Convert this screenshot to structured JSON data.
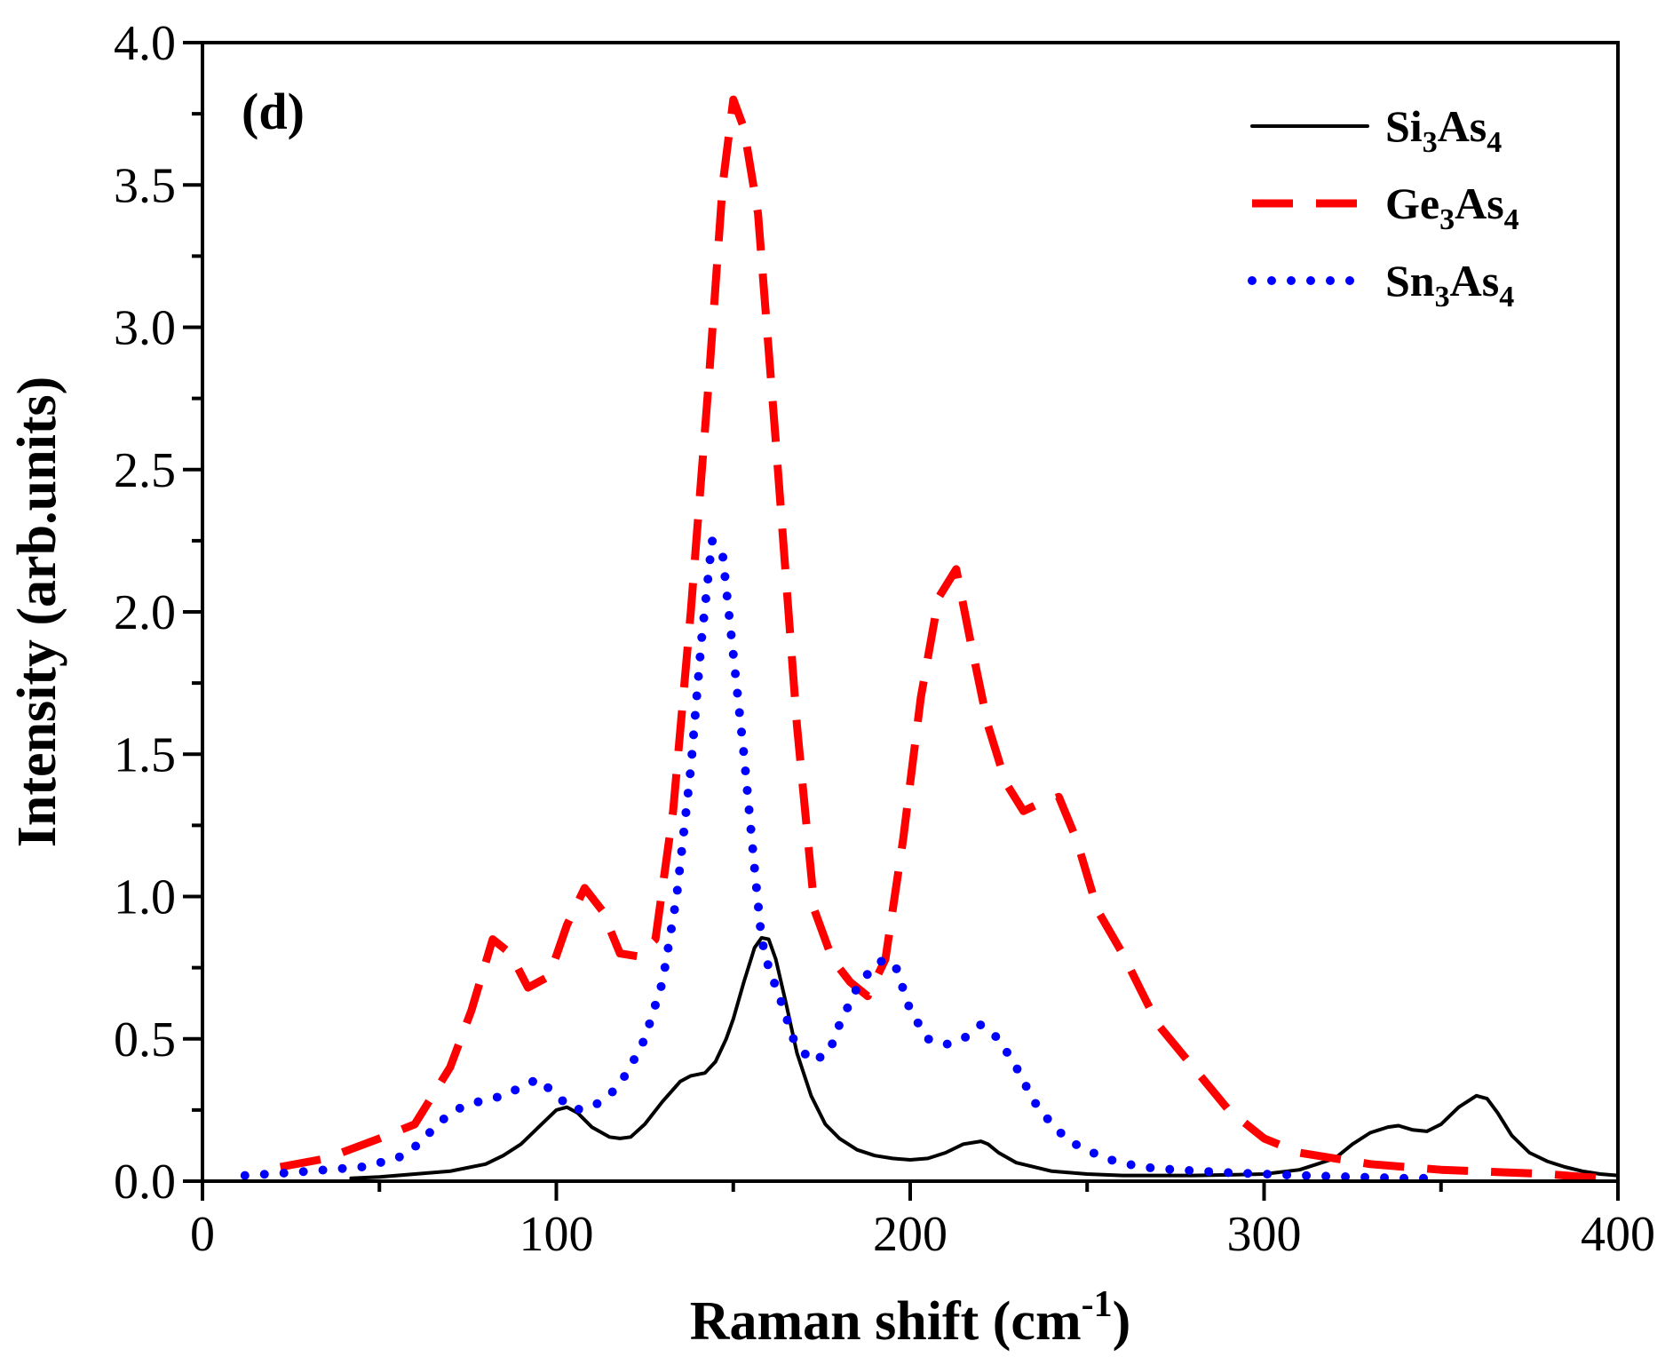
{
  "chart_data": {
    "type": "line",
    "panel_label": "(d)",
    "xlabel": "Raman shift (cm",
    "xlabel_superscript": "-1",
    "xlabel_suffix": ")",
    "ylabel": "Intensity (arb.units)",
    "xlim": [
      0,
      400
    ],
    "ylim": [
      0,
      4.0
    ],
    "xticks": [
      0,
      100,
      200,
      300,
      400
    ],
    "xtick_labels": [
      "0",
      "100",
      "200",
      "300",
      "400"
    ],
    "yticks": [
      0,
      0.5,
      1.0,
      1.5,
      2.0,
      2.5,
      3.0,
      3.5,
      4.0
    ],
    "ytick_labels": [
      "0.0",
      "0.5",
      "1.0",
      "1.5",
      "2.0",
      "2.5",
      "3.0",
      "3.5",
      "4.0"
    ],
    "grid": false,
    "legend_position": "top-right",
    "series": [
      {
        "name": "Si3As4",
        "label_parts": [
          "Si",
          "3",
          "As",
          "4"
        ],
        "color": "#000000",
        "style": "solid",
        "x": [
          42,
          50,
          60,
          70,
          80,
          85,
          90,
          95,
          100,
          103,
          106,
          110,
          115,
          118,
          121,
          125,
          130,
          135,
          138,
          142,
          145,
          148,
          150,
          153,
          156,
          158,
          160,
          162,
          165,
          168,
          172,
          176,
          180,
          185,
          190,
          195,
          200,
          205,
          210,
          215,
          220,
          222,
          225,
          230,
          240,
          250,
          260,
          270,
          280,
          290,
          300,
          310,
          320,
          325,
          330,
          335,
          338,
          342,
          346,
          350,
          355,
          360,
          363,
          366,
          370,
          375,
          380,
          385,
          390,
          395,
          400
        ],
        "values": [
          0.01,
          0.015,
          0.025,
          0.035,
          0.06,
          0.09,
          0.13,
          0.19,
          0.25,
          0.26,
          0.24,
          0.19,
          0.155,
          0.15,
          0.155,
          0.2,
          0.28,
          0.35,
          0.37,
          0.38,
          0.42,
          0.5,
          0.57,
          0.7,
          0.82,
          0.855,
          0.85,
          0.78,
          0.62,
          0.45,
          0.3,
          0.2,
          0.15,
          0.11,
          0.09,
          0.08,
          0.075,
          0.08,
          0.1,
          0.13,
          0.14,
          0.13,
          0.1,
          0.065,
          0.035,
          0.025,
          0.02,
          0.02,
          0.02,
          0.022,
          0.025,
          0.04,
          0.08,
          0.13,
          0.17,
          0.19,
          0.195,
          0.18,
          0.175,
          0.2,
          0.26,
          0.3,
          0.29,
          0.24,
          0.16,
          0.1,
          0.07,
          0.05,
          0.035,
          0.025,
          0.02
        ]
      },
      {
        "name": "Ge3As4",
        "label_parts": [
          "Ge",
          "3",
          "As",
          "4"
        ],
        "color": "#ff0000",
        "style": "dashed",
        "x": [
          22,
          35,
          50,
          60,
          70,
          76,
          82,
          87,
          92,
          98,
          103,
          108,
          113,
          118,
          123,
          128,
          133,
          138,
          143,
          147,
          150,
          153,
          157,
          162,
          168,
          173,
          178,
          183,
          188,
          193,
          198,
          203,
          208,
          213,
          217,
          222,
          227,
          232,
          237,
          242,
          247,
          253,
          260,
          270,
          280,
          290,
          300,
          310,
          320,
          330,
          340,
          350,
          360,
          370,
          380,
          385,
          390,
          398
        ],
        "values": [
          0.05,
          0.08,
          0.15,
          0.2,
          0.4,
          0.6,
          0.85,
          0.8,
          0.68,
          0.72,
          0.9,
          1.03,
          0.95,
          0.8,
          0.79,
          0.85,
          1.3,
          2.0,
          2.8,
          3.5,
          3.8,
          3.7,
          3.4,
          2.6,
          1.6,
          0.95,
          0.78,
          0.7,
          0.65,
          0.78,
          1.2,
          1.7,
          2.05,
          2.15,
          1.9,
          1.6,
          1.4,
          1.3,
          1.33,
          1.35,
          1.2,
          0.95,
          0.8,
          0.55,
          0.4,
          0.25,
          0.15,
          0.1,
          0.08,
          0.06,
          0.05,
          0.04,
          0.035,
          0.03,
          0.025,
          0.02,
          0.015,
          0.01
        ]
      },
      {
        "name": "Sn3As4",
        "label_parts": [
          "Sn",
          "3",
          "As",
          "4"
        ],
        "color": "#0000ff",
        "style": "dotted",
        "x": [
          12,
          25,
          35,
          45,
          55,
          60,
          65,
          70,
          75,
          85,
          95,
          100,
          105,
          110,
          115,
          120,
          125,
          130,
          134,
          138,
          141,
          144,
          147,
          150,
          153,
          156,
          158,
          160,
          163,
          167,
          172,
          177,
          180,
          185,
          190,
          193,
          196,
          200,
          205,
          210,
          215,
          220,
          225,
          230,
          235,
          240,
          245,
          255,
          265,
          275,
          290,
          310,
          325,
          340,
          350
        ],
        "values": [
          0.02,
          0.03,
          0.04,
          0.05,
          0.08,
          0.12,
          0.18,
          0.24,
          0.27,
          0.3,
          0.36,
          0.3,
          0.25,
          0.26,
          0.3,
          0.38,
          0.5,
          0.7,
          1.0,
          1.45,
          1.9,
          2.25,
          2.2,
          1.85,
          1.5,
          1.1,
          0.85,
          0.75,
          0.65,
          0.5,
          0.42,
          0.45,
          0.55,
          0.68,
          0.76,
          0.78,
          0.75,
          0.6,
          0.5,
          0.48,
          0.5,
          0.55,
          0.5,
          0.4,
          0.28,
          0.2,
          0.14,
          0.08,
          0.05,
          0.04,
          0.03,
          0.02,
          0.015,
          0.01,
          0.01
        ]
      }
    ]
  }
}
